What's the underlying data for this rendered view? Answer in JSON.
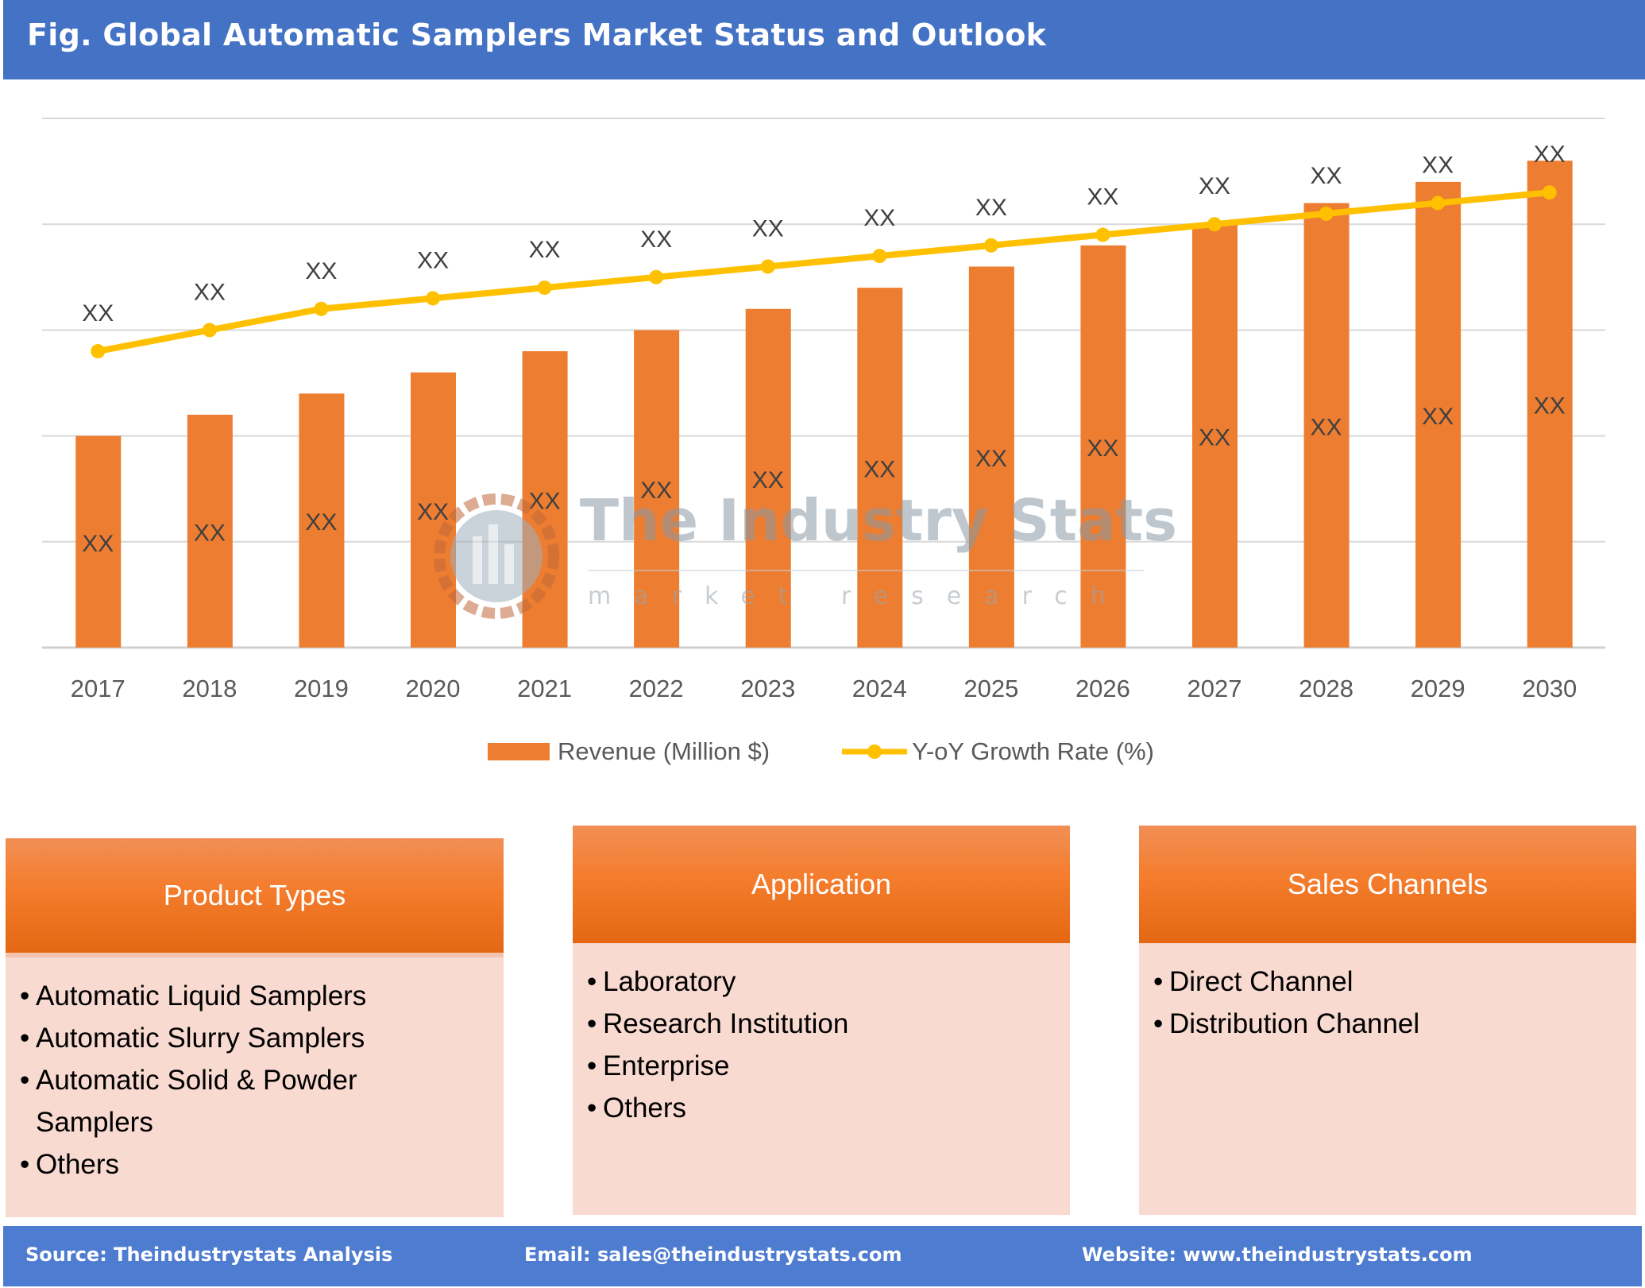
{
  "header": {
    "title": "Fig. Global Automatic Samplers Market Status and Outlook"
  },
  "chart_data": {
    "type": "bar",
    "title": "Fig. Global Automatic Samplers Market Status and Outlook",
    "categories": [
      "2017",
      "2018",
      "2019",
      "2020",
      "2021",
      "2022",
      "2023",
      "2024",
      "2025",
      "2026",
      "2027",
      "2028",
      "2029",
      "2030"
    ],
    "series": [
      {
        "name": "Revenue (Million $)",
        "type": "bar",
        "color": "#ED7D31",
        "values": [
          2.0,
          2.2,
          2.4,
          2.6,
          2.8,
          3.0,
          3.2,
          3.4,
          3.6,
          3.8,
          4.0,
          4.2,
          4.4,
          4.6
        ],
        "data_labels": [
          "XX",
          "XX",
          "XX",
          "XX",
          "XX",
          "XX",
          "XX",
          "XX",
          "XX",
          "XX",
          "XX",
          "XX",
          "XX",
          "XX"
        ]
      },
      {
        "name": "Y-oY Growth Rate (%)",
        "type": "line",
        "color": "#FFC000",
        "values": [
          2.8,
          3.0,
          3.2,
          3.3,
          3.4,
          3.5,
          3.6,
          3.7,
          3.8,
          3.9,
          4.0,
          4.1,
          4.2,
          4.3
        ],
        "data_labels": [
          "XX",
          "XX",
          "XX",
          "XX",
          "XX",
          "XX",
          "XX",
          "XX",
          "XX",
          "XX",
          "XX",
          "XX",
          "XX",
          "XX"
        ]
      }
    ],
    "ylim": [
      0,
      5
    ],
    "y_axis_labels_shown": false,
    "grid": true,
    "legend": "bottom"
  },
  "watermark": {
    "title": "The Industry Stats",
    "subtitle": "market research"
  },
  "boxes": [
    {
      "title": "Product Types",
      "items": [
        "Automatic Liquid Samplers",
        "Automatic Slurry Samplers",
        "Automatic Solid & Powder Samplers",
        "Others"
      ]
    },
    {
      "title": "Application",
      "items": [
        "Laboratory",
        "Research Institution",
        "Enterprise",
        "Others"
      ]
    },
    {
      "title": "Sales Channels",
      "items": [
        "Direct Channel",
        "Distribution Channel"
      ]
    }
  ],
  "footer": {
    "source": "Source: Theindustrystats Analysis",
    "email": "Email: sales@theindustrystats.com",
    "website": "Website: www.theindustrystats.com"
  }
}
